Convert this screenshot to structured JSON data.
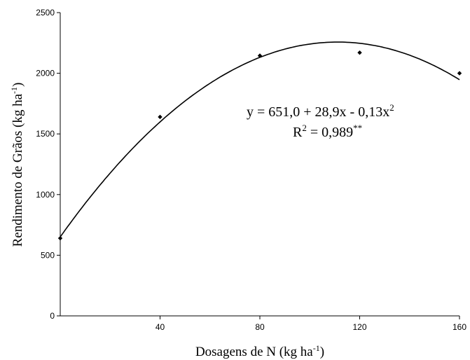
{
  "chart_data": {
    "type": "scatter",
    "xlabel": "Dosagens de N (kg ha",
    "xlabel_unit_sup": "-1",
    "xlabel_close": ")",
    "ylabel": "Rendimento de Grãos (kg ha",
    "ylabel_unit_sup": "-1",
    "ylabel_close": ")",
    "xlim": [
      0,
      160
    ],
    "ylim": [
      0,
      2500
    ],
    "x_ticks": [
      40,
      80,
      120,
      160
    ],
    "x_tick_labels": [
      "40",
      "80",
      "120",
      "160"
    ],
    "y_ticks": [
      0,
      500,
      1000,
      1500,
      2000,
      2500
    ],
    "y_tick_labels": [
      "0",
      "500",
      "1000",
      "1500",
      "2000",
      "2500"
    ],
    "grid": false,
    "series": [
      {
        "x": [
          0,
          40,
          80,
          120,
          160
        ],
        "y": [
          640,
          1640,
          2145,
          2170,
          2000
        ]
      }
    ],
    "trendline": {
      "type": "quadratic",
      "coefficients": [
        651.0,
        28.9,
        -0.13
      ]
    },
    "equation": {
      "line1_main": "y = 651,0 + 28,9x - 0,13x",
      "line1_sup": "2",
      "line2_main": "R",
      "line2_sup1": "2",
      "line2_rest": " = 0,989",
      "line2_sup2": "**"
    },
    "colors": {
      "marker": "#000000",
      "line": "#000000",
      "axis": "#000000"
    }
  }
}
